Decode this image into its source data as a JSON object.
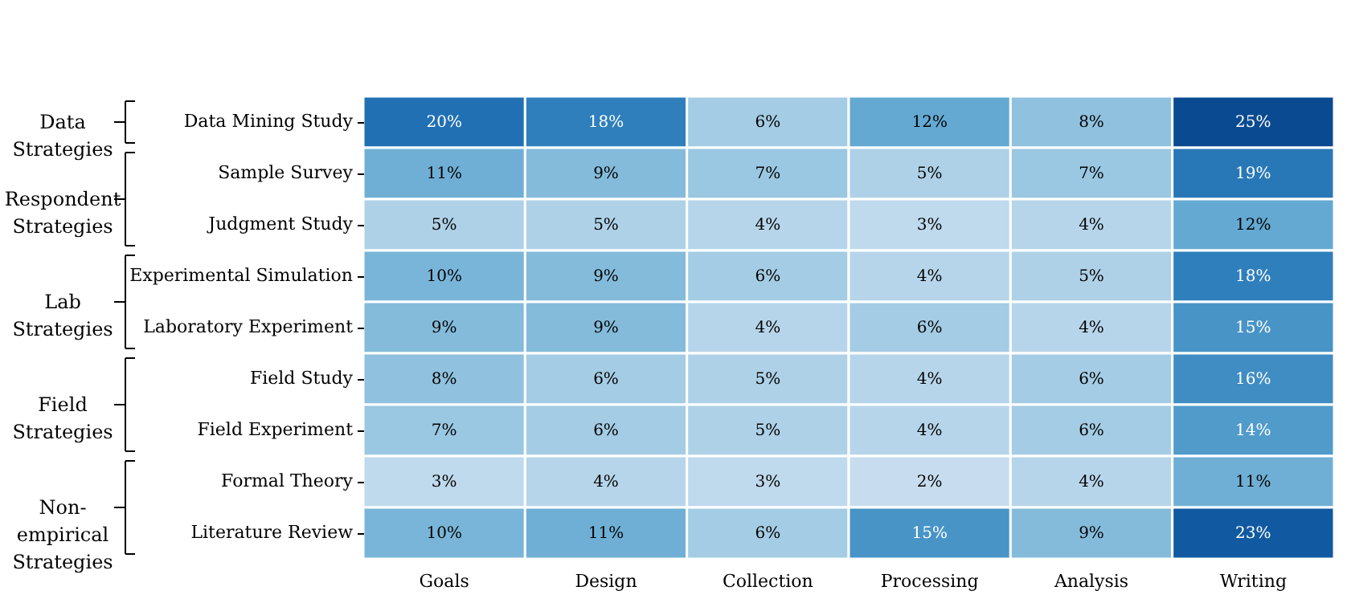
{
  "chart_data": {
    "type": "heatmap",
    "categories": [
      "Goals",
      "Design",
      "Collection",
      "Processing",
      "Analysis",
      "Writing"
    ],
    "y_categories": [
      "Data Mining Study",
      "Sample Survey",
      "Judgment Study",
      "Experimental Simulation",
      "Laboratory Experiment",
      "Field Study",
      "Field Experiment",
      "Formal Theory",
      "Literature Review"
    ],
    "cells": [
      [
        20,
        18,
        6,
        12,
        8,
        25
      ],
      [
        11,
        9,
        7,
        5,
        7,
        19
      ],
      [
        5,
        5,
        4,
        3,
        4,
        12
      ],
      [
        10,
        9,
        6,
        4,
        5,
        18
      ],
      [
        9,
        9,
        4,
        6,
        4,
        15
      ],
      [
        8,
        6,
        5,
        4,
        6,
        16
      ],
      [
        7,
        6,
        5,
        4,
        6,
        14
      ],
      [
        3,
        4,
        3,
        2,
        4,
        11
      ],
      [
        10,
        11,
        6,
        15,
        9,
        23
      ]
    ],
    "cell_labels": [
      [
        "20%",
        "18%",
        "6%",
        "12%",
        "8%",
        "25%"
      ],
      [
        "11%",
        "9%",
        "7%",
        "5%",
        "7%",
        "19%"
      ],
      [
        "5%",
        "5%",
        "4%",
        "3%",
        "4%",
        "12%"
      ],
      [
        "10%",
        "9%",
        "6%",
        "4%",
        "5%",
        "18%"
      ],
      [
        "9%",
        "9%",
        "4%",
        "6%",
        "4%",
        "15%"
      ],
      [
        "8%",
        "6%",
        "5%",
        "4%",
        "6%",
        "16%"
      ],
      [
        "7%",
        "6%",
        "5%",
        "4%",
        "6%",
        "14%"
      ],
      [
        "3%",
        "4%",
        "3%",
        "2%",
        "4%",
        "11%"
      ],
      [
        "10%",
        "11%",
        "6%",
        "15%",
        "9%",
        "23%"
      ]
    ],
    "annotations": [
      "Data\nStrategies",
      "Respondent\nStrategies",
      "Lab\nStrategies",
      "Field\nStrategies",
      "Non-\nempirical\nStrategies"
    ]
  }
}
